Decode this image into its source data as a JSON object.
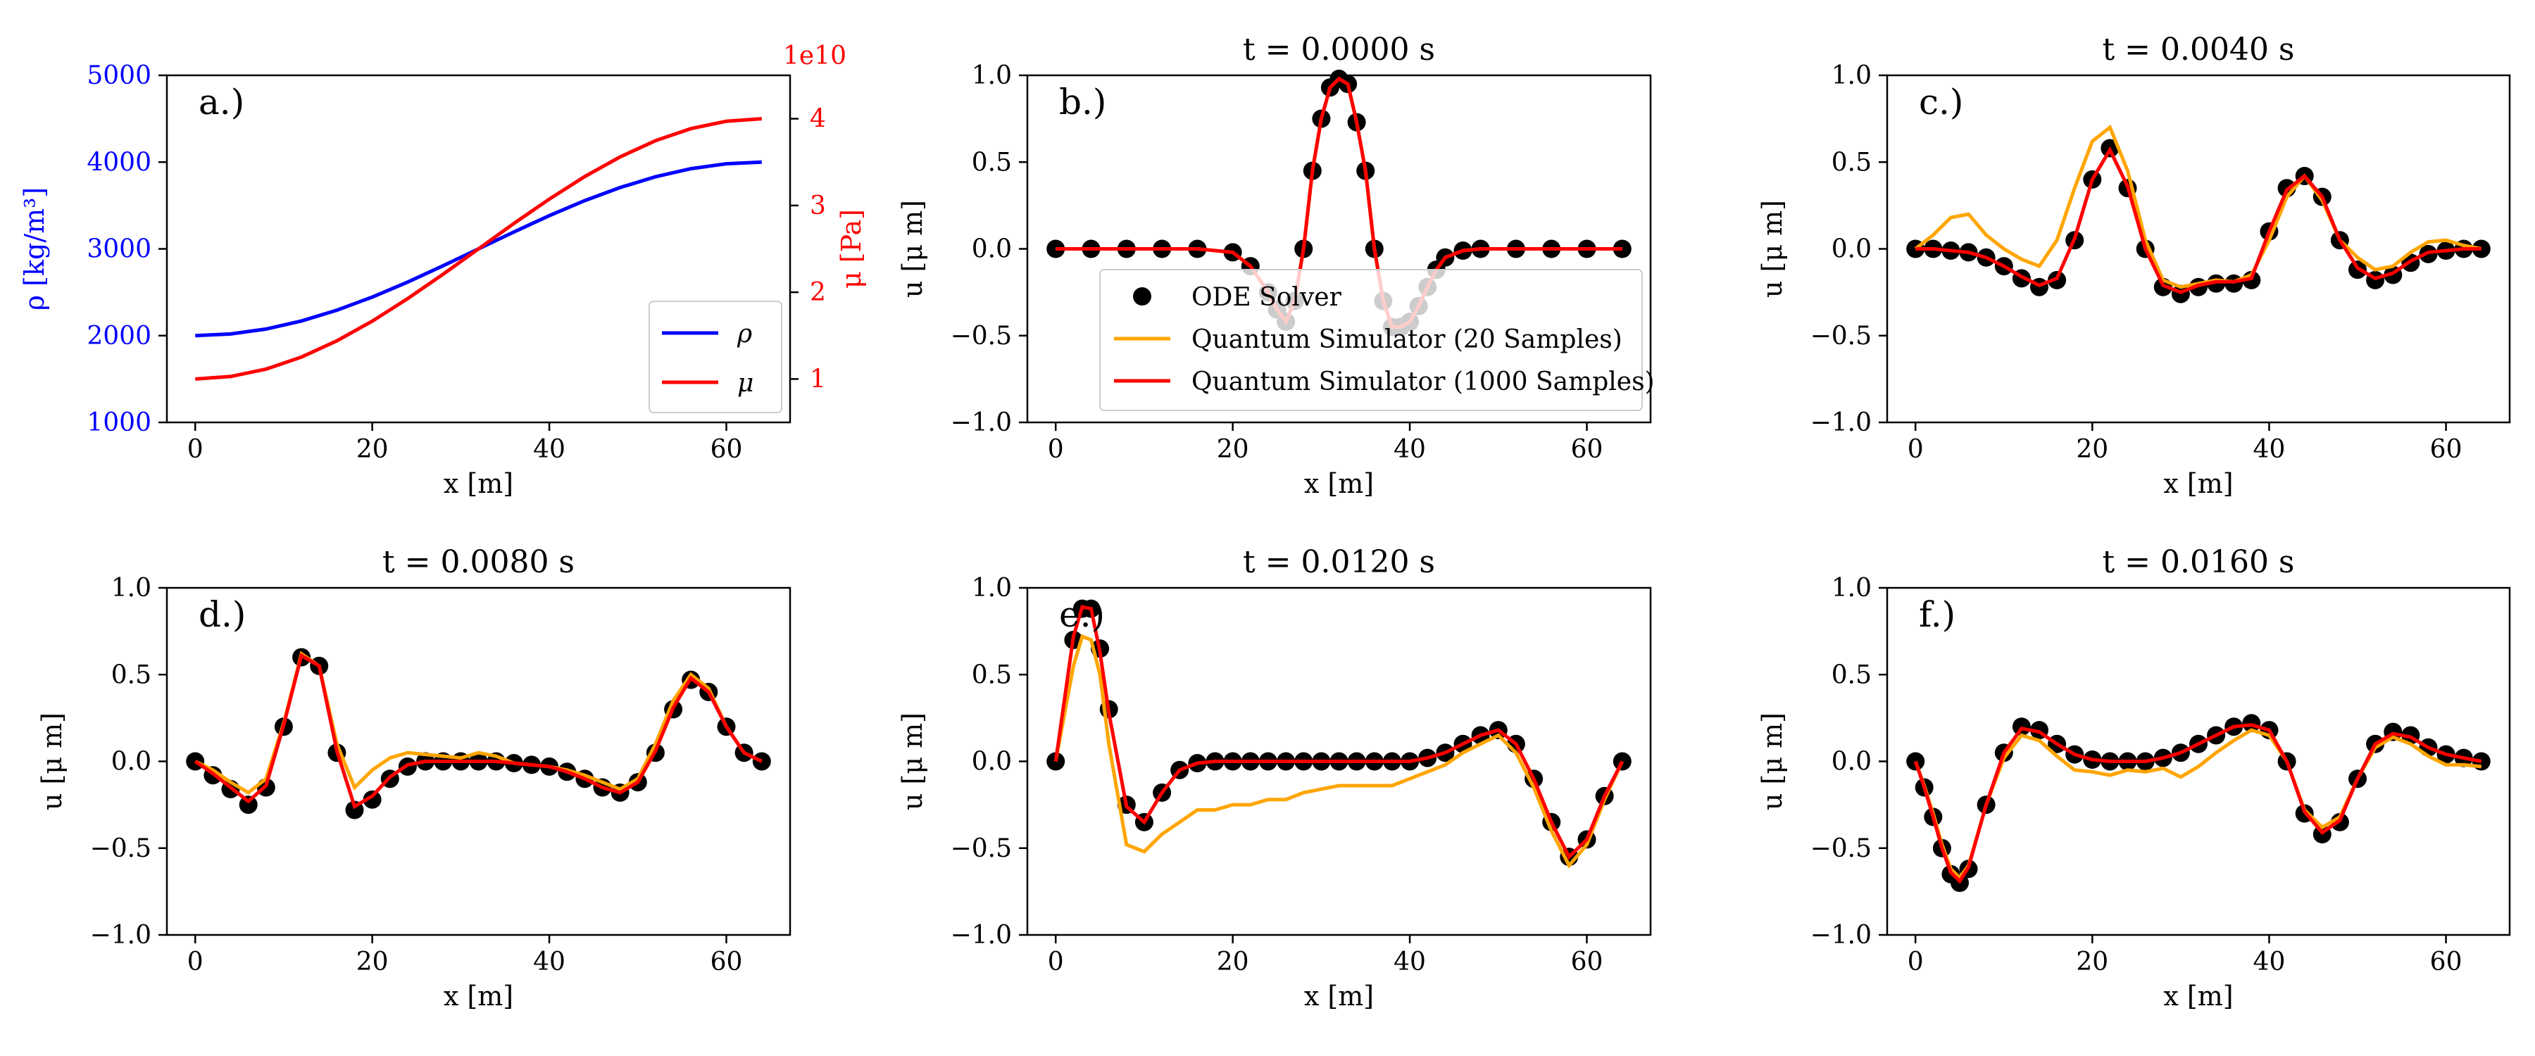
{
  "chart_data": [
    {
      "id": "a",
      "type": "line",
      "panel_label": "a.)",
      "title": "",
      "xlabel": "x [m]",
      "ylabel_left": "ρ [kg/m³]",
      "ylabel_right": "μ [Pa]",
      "right_offset_text": "1e10",
      "xlim": [
        -3.2,
        67.2
      ],
      "ylim_left": [
        1000,
        5000
      ],
      "ylim_right": [
        0.5,
        4.5
      ],
      "xticks": [
        0,
        20,
        40,
        60
      ],
      "yticks_left": [
        1000,
        2000,
        3000,
        4000,
        5000
      ],
      "yticks_right": [
        1,
        2,
        3,
        4
      ],
      "left_color": "#0000ff",
      "right_color": "#ff0000",
      "legend": [
        "ρ",
        "μ"
      ],
      "legend_loc": "lower right",
      "x": [
        0,
        4,
        8,
        12,
        16,
        20,
        24,
        28,
        32,
        36,
        40,
        44,
        48,
        52,
        56,
        60,
        64
      ],
      "series": [
        {
          "name": "ρ",
          "axis": "left",
          "color": "#0000ff",
          "values": [
            2000,
            2019,
            2076,
            2169,
            2293,
            2444,
            2617,
            2805,
            3000,
            3195,
            3383,
            3556,
            3707,
            3831,
            3924,
            3981,
            4000
          ]
        },
        {
          "name": "μ",
          "axis": "right",
          "color": "#ff0000",
          "values": [
            1.0,
            1.029,
            1.114,
            1.253,
            1.44,
            1.667,
            1.926,
            2.207,
            2.5,
            2.793,
            3.074,
            3.333,
            3.56,
            3.747,
            3.886,
            3.971,
            4.0
          ]
        }
      ]
    },
    {
      "id": "b",
      "type": "line",
      "panel_label": "b.)",
      "title": "t = 0.0000 s",
      "xlabel": "x [m]",
      "ylabel": "u [μ m]",
      "xlim": [
        -3.2,
        67.2
      ],
      "ylim": [
        -1.0,
        1.0
      ],
      "xticks": [
        0,
        20,
        40,
        60
      ],
      "yticks": [
        -1.0,
        -0.5,
        0.0,
        0.5,
        1.0
      ],
      "ytick_labels": [
        "−1.0",
        "−0.5",
        "0.0",
        "0.5",
        "1.0"
      ],
      "show_legend": true,
      "x": [
        0,
        4,
        8,
        12,
        16,
        20,
        22,
        24,
        25,
        26,
        27,
        28,
        29,
        30,
        31,
        32,
        33,
        34,
        35,
        36,
        37,
        38,
        39,
        40,
        41,
        42,
        43,
        44,
        46,
        48,
        52,
        56,
        60,
        64
      ],
      "ode": [
        0,
        0,
        0,
        0,
        0,
        -0.02,
        -0.1,
        -0.25,
        -0.35,
        -0.42,
        -0.3,
        0.0,
        0.45,
        0.75,
        0.93,
        0.98,
        0.95,
        0.73,
        0.45,
        0.0,
        -0.3,
        -0.45,
        -0.45,
        -0.42,
        -0.33,
        -0.22,
        -0.12,
        -0.05,
        -0.01,
        0,
        0,
        0,
        0,
        0
      ],
      "q20": [
        0,
        0,
        0,
        0,
        0,
        -0.02,
        -0.1,
        -0.25,
        -0.35,
        -0.42,
        -0.3,
        0.0,
        0.45,
        0.75,
        0.93,
        0.98,
        0.95,
        0.73,
        0.45,
        0.0,
        -0.3,
        -0.45,
        -0.45,
        -0.42,
        -0.33,
        -0.22,
        -0.12,
        -0.05,
        -0.01,
        0,
        0,
        0,
        0,
        0
      ],
      "q1000": [
        0,
        0,
        0,
        0,
        0,
        -0.02,
        -0.1,
        -0.25,
        -0.35,
        -0.42,
        -0.3,
        0.0,
        0.45,
        0.75,
        0.93,
        0.98,
        0.95,
        0.73,
        0.45,
        0.0,
        -0.3,
        -0.45,
        -0.45,
        -0.42,
        -0.33,
        -0.22,
        -0.12,
        -0.05,
        -0.01,
        0,
        0,
        0,
        0,
        0
      ]
    },
    {
      "id": "c",
      "type": "line",
      "panel_label": "c.)",
      "title": "t = 0.0040 s",
      "xlabel": "x [m]",
      "ylabel": "u [μ m]",
      "xlim": [
        -3.2,
        67.2
      ],
      "ylim": [
        -1.0,
        1.0
      ],
      "xticks": [
        0,
        20,
        40,
        60
      ],
      "yticks": [
        -1.0,
        -0.5,
        0.0,
        0.5,
        1.0
      ],
      "ytick_labels": [
        "−1.0",
        "−0.5",
        "0.0",
        "0.5",
        "1.0"
      ],
      "x": [
        0,
        2,
        4,
        6,
        8,
        10,
        12,
        14,
        16,
        18,
        20,
        22,
        24,
        26,
        28,
        30,
        32,
        34,
        36,
        38,
        40,
        42,
        44,
        46,
        48,
        50,
        52,
        54,
        56,
        58,
        60,
        62,
        64
      ],
      "ode": [
        0,
        0.0,
        -0.01,
        -0.02,
        -0.05,
        -0.1,
        -0.17,
        -0.22,
        -0.18,
        0.05,
        0.4,
        0.58,
        0.35,
        0.0,
        -0.22,
        -0.26,
        -0.22,
        -0.2,
        -0.2,
        -0.18,
        0.1,
        0.35,
        0.42,
        0.3,
        0.05,
        -0.12,
        -0.18,
        -0.15,
        -0.08,
        -0.03,
        -0.01,
        0.0,
        0.0
      ],
      "q20": [
        0,
        0.08,
        0.18,
        0.2,
        0.08,
        0.0,
        -0.06,
        -0.1,
        0.05,
        0.35,
        0.62,
        0.7,
        0.45,
        0.05,
        -0.18,
        -0.22,
        -0.2,
        -0.18,
        -0.19,
        -0.15,
        0.05,
        0.3,
        0.42,
        0.28,
        0.05,
        -0.05,
        -0.12,
        -0.1,
        -0.02,
        0.04,
        0.05,
        0.02,
        0.0
      ],
      "q1000": [
        0,
        0.0,
        -0.01,
        -0.02,
        -0.05,
        -0.1,
        -0.16,
        -0.21,
        -0.17,
        0.06,
        0.4,
        0.57,
        0.36,
        0.0,
        -0.21,
        -0.25,
        -0.21,
        -0.19,
        -0.19,
        -0.17,
        0.1,
        0.34,
        0.42,
        0.3,
        0.05,
        -0.11,
        -0.17,
        -0.14,
        -0.07,
        -0.02,
        -0.01,
        0.0,
        0.0
      ]
    },
    {
      "id": "d",
      "type": "line",
      "panel_label": "d.)",
      "title": "t = 0.0080 s",
      "xlabel": "x [m]",
      "ylabel": "u [μ m]",
      "xlim": [
        -3.2,
        67.2
      ],
      "ylim": [
        -1.0,
        1.0
      ],
      "xticks": [
        0,
        20,
        40,
        60
      ],
      "yticks": [
        -1.0,
        -0.5,
        0.0,
        0.5,
        1.0
      ],
      "ytick_labels": [
        "−1.0",
        "−0.5",
        "0.0",
        "0.5",
        "1.0"
      ],
      "x": [
        0,
        2,
        4,
        6,
        8,
        10,
        12,
        14,
        16,
        18,
        20,
        22,
        24,
        26,
        28,
        30,
        32,
        34,
        36,
        38,
        40,
        42,
        44,
        46,
        48,
        50,
        52,
        54,
        56,
        58,
        60,
        62,
        64
      ],
      "ode": [
        0,
        -0.08,
        -0.16,
        -0.25,
        -0.15,
        0.2,
        0.6,
        0.55,
        0.05,
        -0.28,
        -0.22,
        -0.1,
        -0.03,
        0.0,
        0.0,
        0.0,
        0.0,
        0.0,
        -0.01,
        -0.02,
        -0.03,
        -0.06,
        -0.1,
        -0.15,
        -0.18,
        -0.12,
        0.05,
        0.3,
        0.47,
        0.4,
        0.2,
        0.05,
        0.0
      ],
      "q20": [
        0,
        -0.05,
        -0.12,
        -0.18,
        -0.1,
        0.22,
        0.62,
        0.55,
        0.1,
        -0.15,
        -0.05,
        0.02,
        0.05,
        0.04,
        0.03,
        0.02,
        0.05,
        0.03,
        -0.01,
        -0.02,
        -0.03,
        -0.05,
        -0.08,
        -0.12,
        -0.16,
        -0.1,
        0.1,
        0.35,
        0.5,
        0.42,
        0.2,
        0.05,
        0.0
      ],
      "q1000": [
        0,
        -0.07,
        -0.15,
        -0.23,
        -0.14,
        0.21,
        0.61,
        0.55,
        0.06,
        -0.26,
        -0.2,
        -0.09,
        -0.02,
        0.0,
        0.0,
        0.0,
        0.0,
        0.0,
        -0.01,
        -0.02,
        -0.03,
        -0.06,
        -0.1,
        -0.15,
        -0.18,
        -0.12,
        0.06,
        0.31,
        0.48,
        0.4,
        0.2,
        0.05,
        0.0
      ]
    },
    {
      "id": "e",
      "type": "line",
      "panel_label": "e.)",
      "title": "t = 0.0120 s",
      "xlabel": "x [m]",
      "ylabel": "u [μ m]",
      "xlim": [
        -3.2,
        67.2
      ],
      "ylim": [
        -1.0,
        1.0
      ],
      "xticks": [
        0,
        20,
        40,
        60
      ],
      "yticks": [
        -1.0,
        -0.5,
        0.0,
        0.5,
        1.0
      ],
      "ytick_labels": [
        "−1.0",
        "−0.5",
        "0.0",
        "0.5",
        "1.0"
      ],
      "x": [
        0,
        2,
        3,
        4,
        5,
        6,
        8,
        10,
        12,
        14,
        16,
        18,
        20,
        22,
        24,
        26,
        28,
        30,
        32,
        34,
        36,
        38,
        40,
        42,
        44,
        46,
        48,
        50,
        52,
        54,
        56,
        58,
        60,
        62,
        64
      ],
      "ode": [
        0,
        0.7,
        0.88,
        0.88,
        0.65,
        0.3,
        -0.25,
        -0.35,
        -0.18,
        -0.05,
        -0.01,
        0.0,
        0.0,
        0.0,
        0.0,
        0.0,
        0.0,
        0.0,
        0.0,
        0.0,
        0.0,
        0.0,
        0.0,
        0.02,
        0.05,
        0.1,
        0.15,
        0.18,
        0.1,
        -0.1,
        -0.35,
        -0.55,
        -0.45,
        -0.2,
        0.0
      ],
      "q20": [
        0,
        0.55,
        0.72,
        0.7,
        0.5,
        0.1,
        -0.48,
        -0.52,
        -0.42,
        -0.35,
        -0.28,
        -0.28,
        -0.25,
        -0.25,
        -0.22,
        -0.22,
        -0.18,
        -0.16,
        -0.14,
        -0.14,
        -0.14,
        -0.14,
        -0.1,
        -0.06,
        -0.02,
        0.05,
        0.1,
        0.15,
        0.05,
        -0.15,
        -0.4,
        -0.6,
        -0.48,
        -0.22,
        0.0
      ],
      "q1000": [
        0,
        0.72,
        0.89,
        0.88,
        0.63,
        0.28,
        -0.26,
        -0.35,
        -0.18,
        -0.05,
        -0.01,
        0.0,
        0.0,
        0.0,
        0.0,
        0.0,
        0.0,
        0.0,
        0.0,
        0.0,
        0.0,
        0.0,
        0.0,
        0.02,
        0.05,
        0.1,
        0.15,
        0.18,
        0.1,
        -0.1,
        -0.35,
        -0.55,
        -0.45,
        -0.2,
        0.0
      ]
    },
    {
      "id": "f",
      "type": "line",
      "panel_label": "f.)",
      "title": "t = 0.0160 s",
      "xlabel": "x [m]",
      "ylabel": "u [μ m]",
      "xlim": [
        -3.2,
        67.2
      ],
      "ylim": [
        -1.0,
        1.0
      ],
      "xticks": [
        0,
        20,
        40,
        60
      ],
      "yticks": [
        -1.0,
        -0.5,
        0.0,
        0.5,
        1.0
      ],
      "ytick_labels": [
        "−1.0",
        "−0.5",
        "0.0",
        "0.5",
        "1.0"
      ],
      "x": [
        0,
        1,
        2,
        3,
        4,
        5,
        6,
        8,
        10,
        12,
        14,
        16,
        18,
        20,
        22,
        24,
        26,
        28,
        30,
        32,
        34,
        36,
        38,
        40,
        42,
        44,
        46,
        48,
        50,
        52,
        54,
        56,
        58,
        60,
        62,
        64
      ],
      "ode": [
        0,
        -0.15,
        -0.32,
        -0.5,
        -0.65,
        -0.7,
        -0.62,
        -0.25,
        0.05,
        0.2,
        0.18,
        0.1,
        0.04,
        0.01,
        0.0,
        0.0,
        0.0,
        0.02,
        0.05,
        0.1,
        0.15,
        0.2,
        0.22,
        0.18,
        0.0,
        -0.3,
        -0.42,
        -0.35,
        -0.1,
        0.1,
        0.17,
        0.15,
        0.08,
        0.04,
        0.02,
        0.0
      ],
      "q20": [
        0,
        -0.14,
        -0.3,
        -0.48,
        -0.62,
        -0.67,
        -0.6,
        -0.25,
        0.02,
        0.15,
        0.12,
        0.03,
        -0.05,
        -0.06,
        -0.08,
        -0.05,
        -0.06,
        -0.04,
        -0.09,
        -0.03,
        0.05,
        0.12,
        0.18,
        0.15,
        0.0,
        -0.28,
        -0.38,
        -0.32,
        -0.1,
        0.08,
        0.14,
        0.1,
        0.03,
        -0.02,
        -0.02,
        -0.03
      ],
      "q1000": [
        0,
        -0.15,
        -0.32,
        -0.5,
        -0.64,
        -0.69,
        -0.61,
        -0.25,
        0.05,
        0.19,
        0.17,
        0.1,
        0.04,
        0.01,
        0.0,
        0.0,
        0.0,
        0.02,
        0.05,
        0.1,
        0.15,
        0.2,
        0.21,
        0.18,
        0.0,
        -0.29,
        -0.41,
        -0.34,
        -0.1,
        0.1,
        0.16,
        0.14,
        0.08,
        0.04,
        0.02,
        0.0
      ]
    }
  ],
  "legend": {
    "ode": "ODE Solver",
    "q20": "Quantum Simulator (20 Samples)",
    "q1000": "Quantum Simulator (1000 Samples)"
  },
  "colors": {
    "ode": "#000000",
    "q20": "#ffa500",
    "q1000": "#ff0000",
    "axes": "#000000"
  }
}
